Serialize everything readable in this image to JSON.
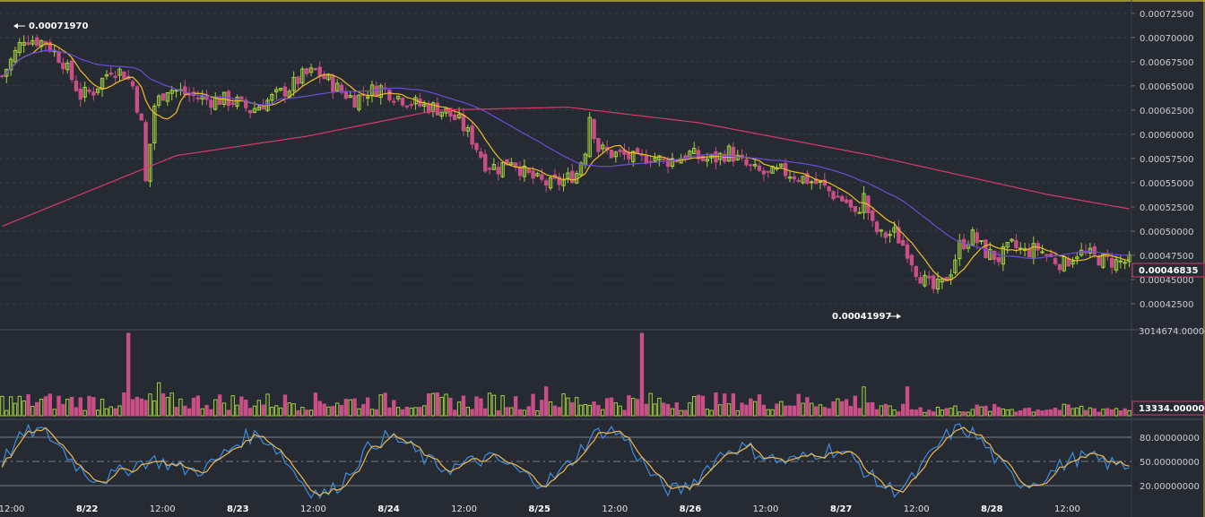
{
  "chart_data": {
    "type": "candlestick",
    "price_axis": {
      "range": [
        0.0004,
        0.000735
      ],
      "ticks": [
        0.000425,
        0.00045,
        0.000475,
        0.0005,
        0.000525,
        0.00055,
        0.000575,
        0.0006,
        0.000625,
        0.00065,
        0.000675,
        0.0007,
        0.000725
      ],
      "tick_labels": [
        "0.00042500",
        "0.00045000",
        "0.00047500",
        "0.00050000",
        "0.00052500",
        "0.00055000",
        "0.00057500",
        "0.00060000",
        "0.00062500",
        "0.00065000",
        "0.00067500",
        "0.00070000",
        "0.00072500"
      ],
      "last_price_label": "0.00046835"
    },
    "annotations": [
      {
        "label": "0.00071970",
        "value": 0.0007197,
        "kind": "high"
      },
      {
        "label": "0.00041997",
        "value": 0.00041997,
        "kind": "low"
      }
    ],
    "time_axis": {
      "labels": [
        "12:00",
        "8/22",
        "12:00",
        "8/23",
        "12:00",
        "8/24",
        "12:00",
        "8/25",
        "12:00",
        "8/26",
        "12:00",
        "8/27",
        "12:00",
        "8/28",
        "12:00"
      ],
      "bold": [
        false,
        true,
        false,
        true,
        false,
        true,
        false,
        true,
        false,
        true,
        false,
        true,
        false,
        true,
        false
      ]
    },
    "close_path": [
      [
        0,
        0.00066
      ],
      [
        5,
        0.0007
      ],
      [
        10,
        0.000695
      ],
      [
        14,
        0.000675
      ],
      [
        18,
        0.00064
      ],
      [
        21,
        0.000645
      ],
      [
        25,
        0.000668
      ],
      [
        28,
        0.000663
      ],
      [
        30,
        0.00065
      ],
      [
        32,
        0.00061
      ],
      [
        33,
        0.00055
      ],
      [
        35,
        0.00063
      ],
      [
        38,
        0.000648
      ],
      [
        42,
        0.000642
      ],
      [
        45,
        0.000638
      ],
      [
        48,
        0.000635
      ],
      [
        51,
        0.000636
      ],
      [
        54,
        0.000633
      ],
      [
        57,
        0.000625
      ],
      [
        60,
        0.000632
      ],
      [
        63,
        0.00064
      ],
      [
        66,
        0.000648
      ],
      [
        69,
        0.00066
      ],
      [
        72,
        0.000665
      ],
      [
        75,
        0.000655
      ],
      [
        78,
        0.000644
      ],
      [
        81,
        0.000636
      ],
      [
        84,
        0.000644
      ],
      [
        87,
        0.000648
      ],
      [
        90,
        0.000641
      ],
      [
        93,
        0.000635
      ],
      [
        96,
        0.00063
      ],
      [
        99,
        0.000628
      ],
      [
        102,
        0.000623
      ],
      [
        105,
        0.000613
      ],
      [
        108,
        0.000595
      ],
      [
        111,
        0.00057
      ],
      [
        114,
        0.000565
      ],
      [
        117,
        0.000575
      ],
      [
        120,
        0.00056
      ],
      [
        123,
        0.000552
      ],
      [
        126,
        0.000548
      ],
      [
        129,
        0.000552
      ],
      [
        132,
        0.00056
      ],
      [
        134,
        0.000585
      ],
      [
        135,
        0.00062
      ],
      [
        137,
        0.000585
      ],
      [
        140,
        0.00058
      ],
      [
        143,
        0.000578
      ],
      [
        146,
        0.000573
      ],
      [
        149,
        0.000578
      ],
      [
        152,
        0.000572
      ],
      [
        155,
        0.000575
      ],
      [
        158,
        0.00058
      ],
      [
        161,
        0.000574
      ],
      [
        164,
        0.000575
      ],
      [
        167,
        0.000582
      ],
      [
        170,
        0.00057
      ],
      [
        173,
        0.000562
      ],
      [
        176,
        0.000558
      ],
      [
        179,
        0.000562
      ],
      [
        182,
        0.000558
      ],
      [
        185,
        0.000553
      ],
      [
        188,
        0.000548
      ],
      [
        191,
        0.000538
      ],
      [
        194,
        0.00053
      ],
      [
        196,
        0.000515
      ],
      [
        198,
        0.000535
      ],
      [
        200,
        0.000505
      ],
      [
        202,
        0.000495
      ],
      [
        205,
        0.000498
      ],
      [
        208,
        0.00048
      ],
      [
        210,
        0.00046
      ],
      [
        212,
        0.000448
      ],
      [
        214,
        0.00044
      ],
      [
        216,
        0.000445
      ],
      [
        218,
        0.00046
      ],
      [
        220,
        0.000485
      ],
      [
        223,
        0.000495
      ],
      [
        226,
        0.000478
      ],
      [
        229,
        0.000472
      ],
      [
        232,
        0.000485
      ],
      [
        235,
        0.000478
      ],
      [
        238,
        0.000482
      ],
      [
        241,
        0.000472
      ],
      [
        244,
        0.000466
      ],
      [
        247,
        0.000478
      ],
      [
        250,
        0.000475
      ],
      [
        253,
        0.00047
      ],
      [
        256,
        0.000468
      ],
      [
        259,
        0.000468
      ]
    ],
    "volume_axis": {
      "max_label": "3014674.000000",
      "last_label": "13334.000000"
    },
    "stochastic_axis": {
      "range": [
        0,
        100
      ],
      "ticks": [
        20,
        50,
        80
      ],
      "tick_labels": [
        "20.00000000",
        "50.00000000",
        "80.00000000"
      ]
    },
    "colors": {
      "background": "#262a33",
      "up_candle": "#a3d23c",
      "down_candle": "#c94f86",
      "ma_fast": "#f0c020",
      "ma_mid": "#6a4ed8",
      "ma_slow": "#d83a6c",
      "stoch_k": "#3d8ee0",
      "stoch_d": "#f0b84a",
      "grid": "#3a3f4a",
      "border": "#bfae3a"
    }
  }
}
